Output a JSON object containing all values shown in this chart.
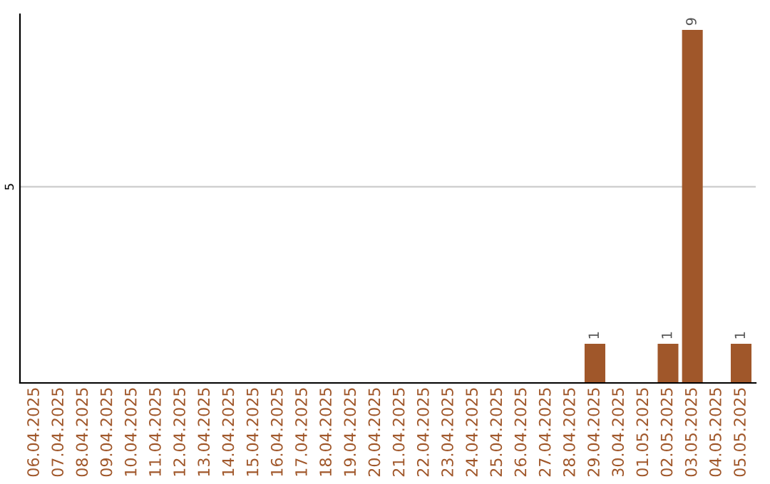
{
  "chart_data": {
    "type": "bar",
    "categories": [
      "06.04.2025",
      "07.04.2025",
      "08.04.2025",
      "09.04.2025",
      "10.04.2025",
      "11.04.2025",
      "12.04.2025",
      "13.04.2025",
      "14.04.2025",
      "15.04.2025",
      "16.04.2025",
      "17.04.2025",
      "18.04.2025",
      "19.04.2025",
      "20.04.2025",
      "21.04.2025",
      "22.04.2025",
      "23.04.2025",
      "24.04.2025",
      "25.04.2025",
      "26.04.2025",
      "27.04.2025",
      "28.04.2025",
      "29.04.2025",
      "30.04.2025",
      "01.05.2025",
      "02.05.2025",
      "03.05.2025",
      "04.05.2025",
      "05.05.2025"
    ],
    "values": [
      null,
      null,
      null,
      null,
      null,
      null,
      null,
      null,
      null,
      null,
      null,
      null,
      null,
      null,
      null,
      null,
      null,
      null,
      null,
      null,
      null,
      null,
      null,
      1,
      null,
      null,
      1,
      9,
      null,
      1
    ],
    "value_labels": [
      null,
      null,
      null,
      null,
      null,
      null,
      null,
      null,
      null,
      null,
      null,
      null,
      null,
      null,
      null,
      null,
      null,
      null,
      null,
      null,
      null,
      null,
      null,
      "1",
      null,
      null,
      "1",
      "9",
      null,
      "1"
    ],
    "ylim": [
      0,
      9.4
    ],
    "color": "#a0572a",
    "yticks": [
      5
    ],
    "grid": "y",
    "legend": false
  }
}
